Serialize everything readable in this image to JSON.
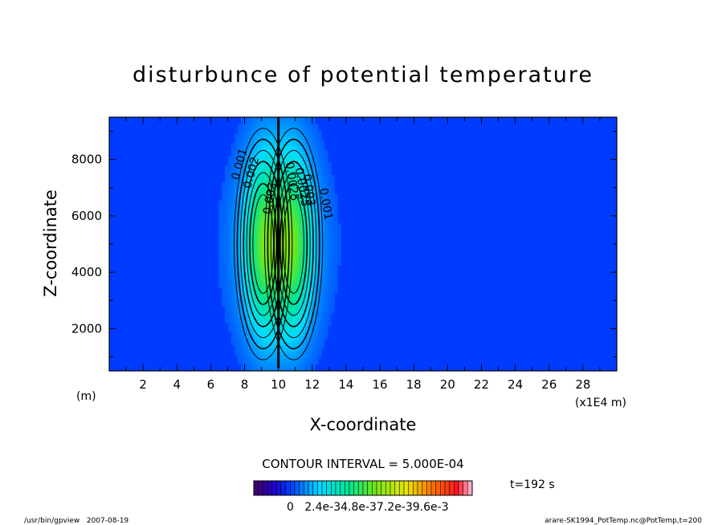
{
  "chart_data": {
    "type": "heatmap",
    "title": "disturbunce of potential temperature",
    "xlabel": "X-coordinate",
    "ylabel": "Z-coordinate",
    "x_unit_left": "(m)",
    "x_unit_right": "(x1E4 m)",
    "xlim": [
      0,
      30
    ],
    "ylim": [
      500,
      9500
    ],
    "x_ticks": [
      2,
      4,
      6,
      8,
      10,
      12,
      14,
      16,
      18,
      20,
      22,
      24,
      26,
      28
    ],
    "y_ticks": [
      2000,
      4000,
      6000,
      8000
    ],
    "contour_interval_text": "CONTOUR INTERVAL = 5.000E-04",
    "time_label": "t=192 s",
    "colorbar": {
      "min": 0,
      "max": 0.01,
      "labels": [
        "0",
        "2.4e-3",
        "4.8e-3",
        "7.2e-3",
        "9.6e-3"
      ],
      "label_text": "0   2.4e-34.8e-37.2e-39.6e-3"
    },
    "contour_labels": [
      "0.001",
      "0.002",
      "0.003",
      "0.0025",
      "0.001",
      "0.0025",
      "0.003"
    ],
    "field": {
      "center_x": 10,
      "lobe_offset_x": 0.85,
      "center_z": 5000,
      "peak_value": 0.0048,
      "description_values": "two-lobed warm anomaly symmetric about x=10"
    }
  },
  "footer": {
    "left": "/usr/bin/gpview   2007-08-19",
    "right": "arare-SK1994_PotTemp.nc@PotTemp,t=200"
  }
}
